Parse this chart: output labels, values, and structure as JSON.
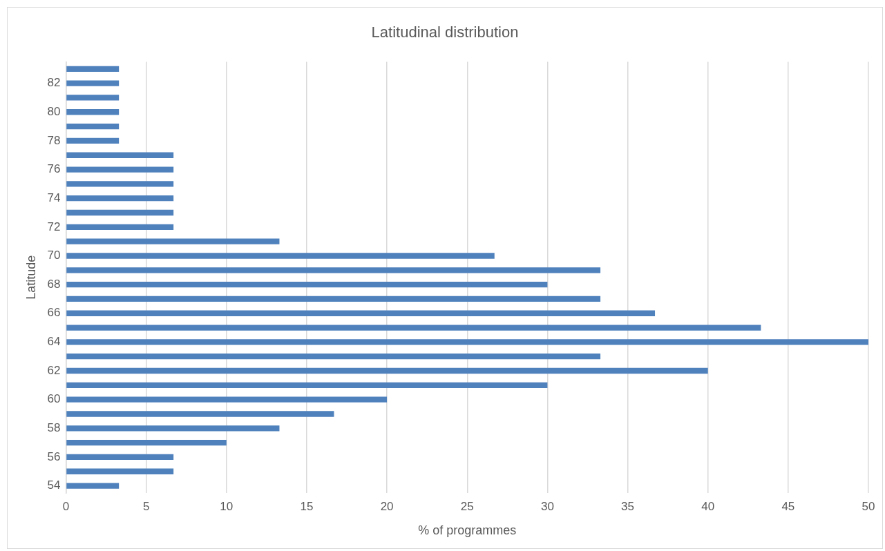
{
  "chart_data": {
    "type": "bar",
    "orientation": "horizontal",
    "title": "Latitudinal distribution",
    "xlabel": "% of programmes",
    "ylabel": "Latitude",
    "categories": [
      null,
      "82",
      null,
      "80",
      null,
      "78",
      null,
      "76",
      null,
      "74",
      null,
      "72",
      null,
      "70",
      null,
      "68",
      null,
      "66",
      null,
      "64",
      null,
      "62",
      null,
      "60",
      null,
      "58",
      null,
      "56",
      null,
      "54"
    ],
    "values": [
      3.3,
      3.3,
      3.3,
      3.3,
      3.3,
      3.3,
      6.7,
      6.7,
      6.7,
      6.7,
      6.7,
      6.7,
      13.3,
      26.7,
      33.3,
      30,
      33.3,
      36.7,
      43.3,
      50,
      33.3,
      40,
      30,
      20,
      16.7,
      13.3,
      10,
      6.7,
      6.7,
      3.3
    ],
    "color": "#4f81bd",
    "xlim": [
      0,
      50
    ],
    "xticks": [
      0,
      5,
      10,
      15,
      20,
      25,
      30,
      35,
      40,
      45,
      50
    ],
    "grid": "x",
    "legend": false
  }
}
